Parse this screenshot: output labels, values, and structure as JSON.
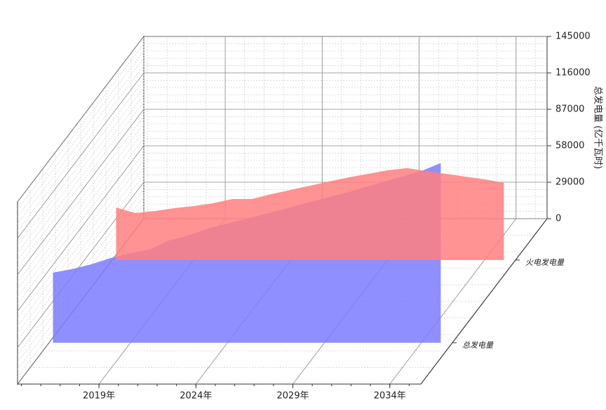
{
  "chart_data": {
    "type": "area3d",
    "y_axis_label": "总发电量 (亿千瓦时)",
    "x": [
      2015,
      2016,
      2017,
      2018,
      2019,
      2020,
      2021,
      2022,
      2023,
      2024,
      2025,
      2026,
      2027,
      2028,
      2029,
      2030,
      2031,
      2032,
      2033,
      2034,
      2035
    ],
    "series": [
      {
        "name": "火电发电量",
        "color": "#ff7f7f",
        "values": [
          41800,
          37400,
          39000,
          41300,
          42900,
          45200,
          48500,
          48500,
          52400,
          55800,
          59100,
          62500,
          65800,
          68600,
          71400,
          73100,
          70800,
          68600,
          66400,
          64200,
          61400
        ]
      },
      {
        "name": "总发电量",
        "color": "#7b7bff",
        "values": [
          55800,
          58600,
          62500,
          67500,
          71400,
          74200,
          81400,
          85300,
          90900,
          94800,
          98700,
          102600,
          106500,
          111000,
          114900,
          118800,
          123300,
          127700,
          132200,
          136600,
          143000
        ]
      }
    ],
    "xlim": [
      2014.8,
      2035.6
    ],
    "xticks": [
      {
        "value": 2019,
        "label": "2019年"
      },
      {
        "value": 2024,
        "label": "2024年"
      },
      {
        "value": 2029,
        "label": "2029年"
      },
      {
        "value": 2034,
        "label": "2034年"
      }
    ],
    "ylim": [
      0,
      145000
    ],
    "yticks": [
      0,
      29000,
      58000,
      87000,
      116000,
      145000
    ],
    "grid": true
  }
}
